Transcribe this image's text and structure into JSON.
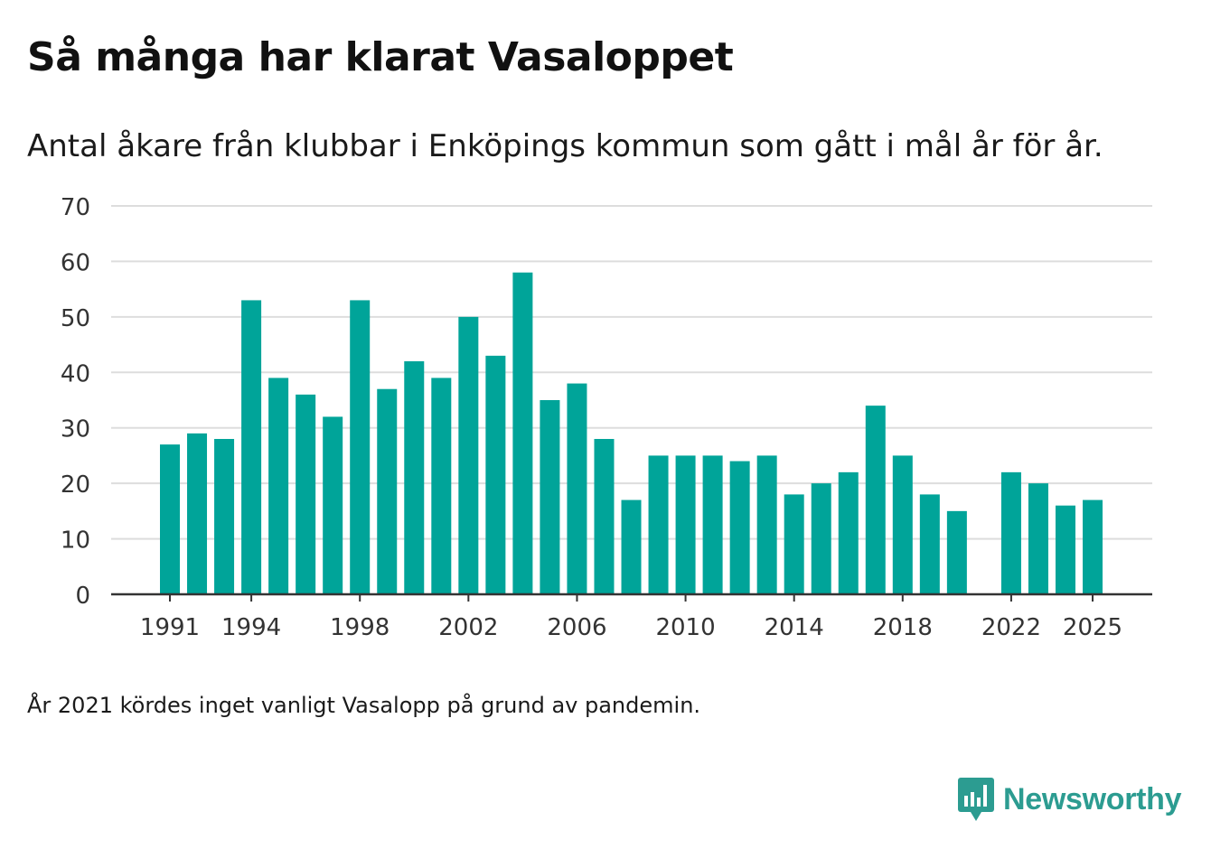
{
  "title": "Så många har klarat Vasaloppet",
  "subtitle": "Antal åkare från klubbar i Enköpings kommun som gått i mål år för år.",
  "note": "År 2021 kördes inget vanligt Vasalopp på grund av pandemin.",
  "brand": {
    "name": "Newsworthy",
    "color": "#2c9c91"
  },
  "chart_data": {
    "type": "bar",
    "title": "Så många har klarat Vasaloppet",
    "xlabel": "",
    "ylabel": "",
    "ylim": [
      0,
      70
    ],
    "yticks": [
      0,
      10,
      20,
      30,
      40,
      50,
      60,
      70
    ],
    "xticks": [
      1991,
      1994,
      1998,
      2002,
      2006,
      2010,
      2014,
      2018,
      2022,
      2025
    ],
    "grid": true,
    "bar_color": "#00a499",
    "categories": [
      1991,
      1992,
      1993,
      1994,
      1995,
      1996,
      1997,
      1998,
      1999,
      2000,
      2001,
      2002,
      2003,
      2004,
      2005,
      2006,
      2007,
      2008,
      2009,
      2010,
      2011,
      2012,
      2013,
      2014,
      2015,
      2016,
      2017,
      2018,
      2019,
      2020,
      2021,
      2022,
      2023,
      2024,
      2025
    ],
    "values": [
      27,
      29,
      28,
      53,
      39,
      36,
      32,
      53,
      37,
      42,
      39,
      50,
      43,
      58,
      35,
      38,
      28,
      17,
      25,
      25,
      25,
      24,
      25,
      18,
      20,
      22,
      34,
      25,
      18,
      15,
      null,
      22,
      20,
      16,
      17
    ]
  }
}
